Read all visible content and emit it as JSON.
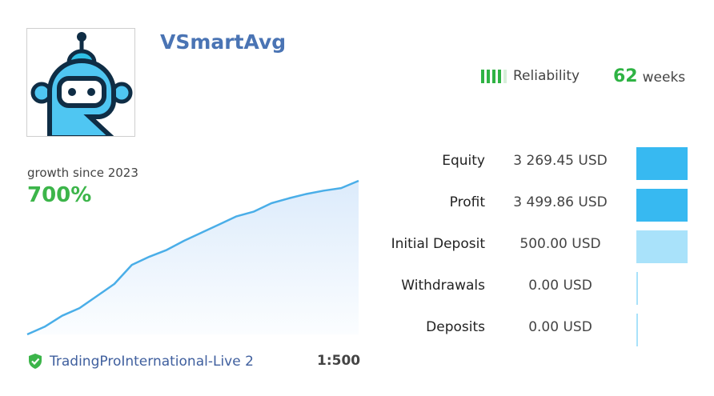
{
  "header": {
    "title": "VSmartAvg",
    "reliability_label": "Reliability",
    "reliability_level": 4,
    "reliability_max": 5,
    "weeks_value": "62",
    "weeks_label": "weeks"
  },
  "growth": {
    "label": "growth since 2023",
    "value": "700%"
  },
  "chart_data": {
    "type": "area",
    "title": "",
    "xlabel": "",
    "ylabel": "",
    "grid": false,
    "legend": "none",
    "color": "#4aaee8",
    "values": [
      0,
      35,
      85,
      120,
      175,
      230,
      317,
      354,
      385,
      427,
      464,
      501,
      538,
      560,
      598,
      620,
      640,
      655,
      667,
      700
    ],
    "ylim": [
      0,
      700
    ]
  },
  "footer": {
    "broker": "TradingProInternational-Live 2",
    "leverage": "1:500",
    "verified_icon": "shield-check-icon"
  },
  "stats": [
    {
      "label": "Equity",
      "value": "3 269.45 USD",
      "bar_fill": 1,
      "color": "#37b9f1"
    },
    {
      "label": "Profit",
      "value": "3 499.86 USD",
      "bar_fill": 1,
      "color": "#37b9f1"
    },
    {
      "label": "Initial Deposit",
      "value": "500.00 USD",
      "bar_fill": 1,
      "color": "#a9e2fa"
    },
    {
      "label": "Withdrawals",
      "value": "0.00 USD",
      "bar_fill": 0,
      "color": "#a9e2fa"
    },
    {
      "label": "Deposits",
      "value": "0.00 USD",
      "bar_fill": 0,
      "color": "#a9e2fa"
    }
  ]
}
